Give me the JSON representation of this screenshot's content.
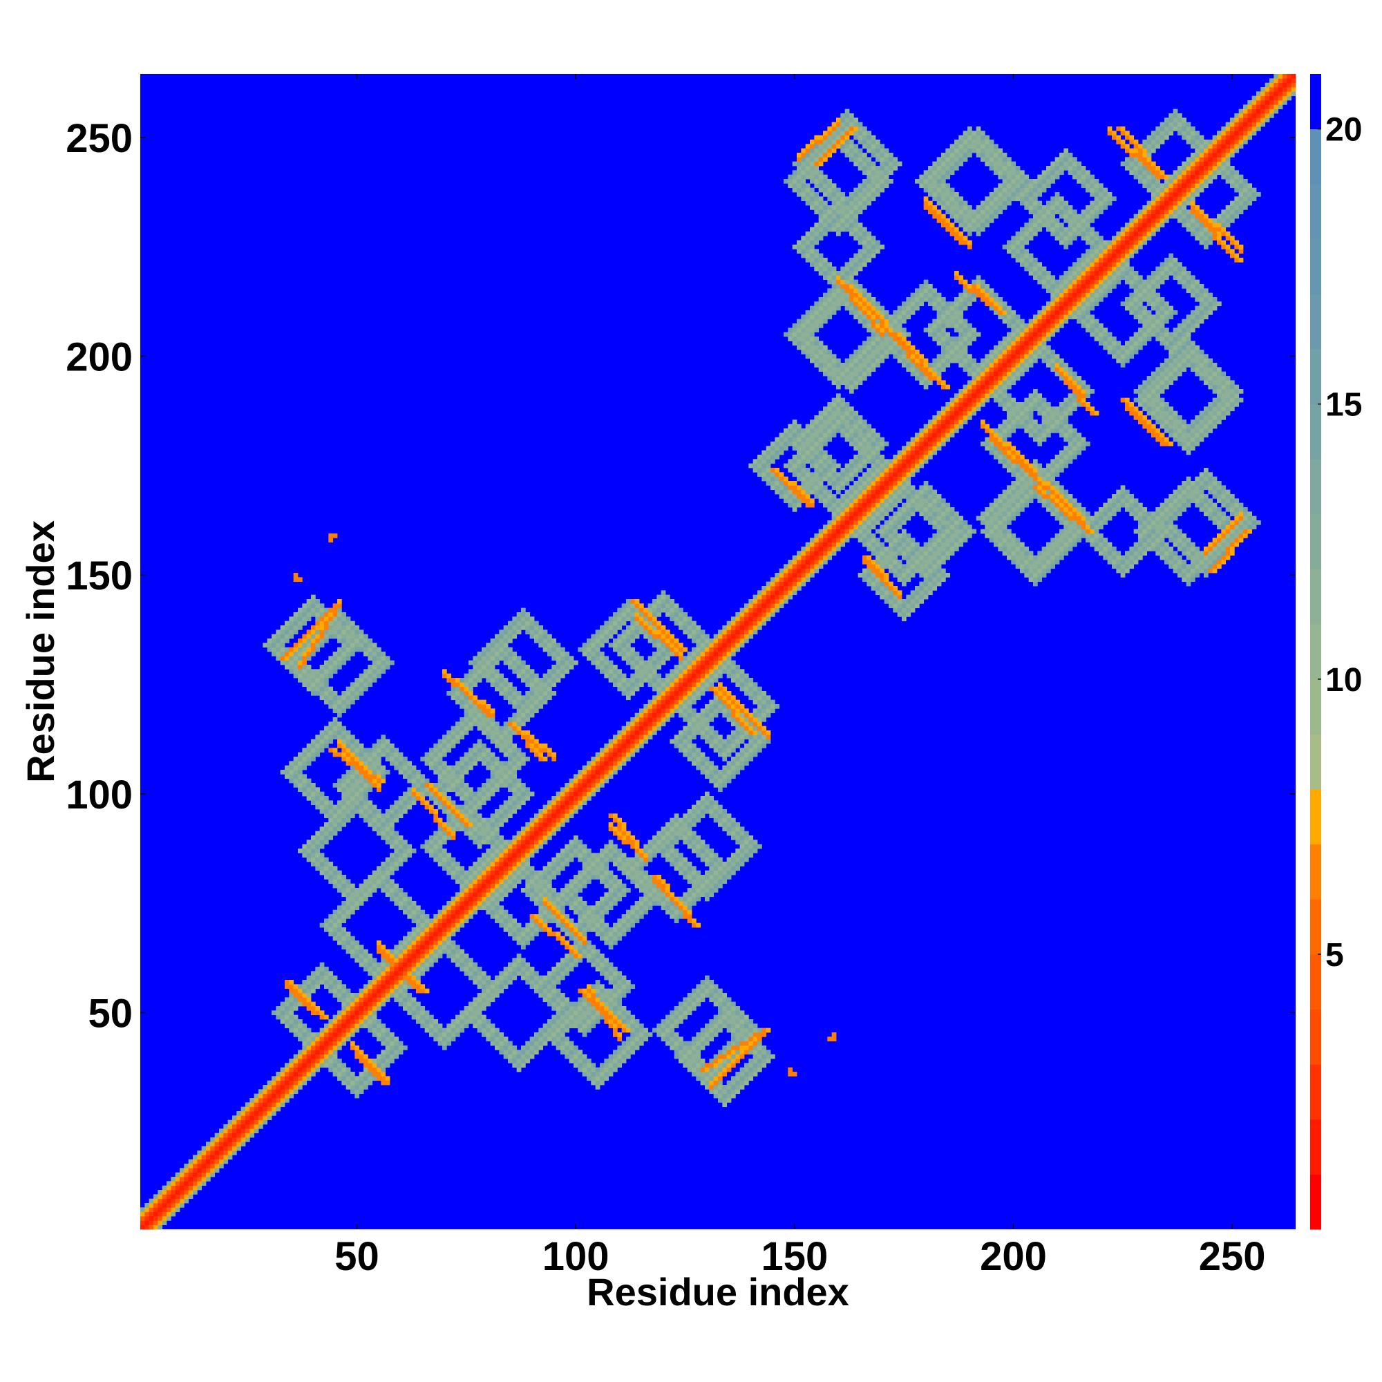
{
  "chart_data": {
    "type": "heatmap",
    "title": "",
    "xlabel": "Residue index",
    "ylabel": "Residue index",
    "xlim": [
      1,
      264
    ],
    "ylim": [
      1,
      264
    ],
    "x_ticks": [
      50,
      100,
      150,
      200,
      250
    ],
    "y_ticks": [
      50,
      100,
      150,
      200,
      250
    ],
    "x_tick_labels": [
      "50",
      "100",
      "150",
      "200",
      "250"
    ],
    "y_tick_labels": [
      "50",
      "100",
      "150",
      "200",
      "250"
    ],
    "background_value": 21,
    "colorbar": {
      "range": [
        0,
        21
      ],
      "ticks": [
        5,
        10,
        15,
        20
      ],
      "tick_labels": [
        "5",
        "10",
        "15",
        "20"
      ],
      "levels": [
        {
          "from": 0,
          "to": 1,
          "color": "#ff0000"
        },
        {
          "from": 1,
          "to": 2,
          "color": "#ff1a00"
        },
        {
          "from": 2,
          "to": 3,
          "color": "#ff3300"
        },
        {
          "from": 3,
          "to": 4,
          "color": "#ff4d00"
        },
        {
          "from": 4,
          "to": 5,
          "color": "#ff5a00"
        },
        {
          "from": 5,
          "to": 6,
          "color": "#ff6a00"
        },
        {
          "from": 6,
          "to": 7,
          "color": "#ff8000"
        },
        {
          "from": 7,
          "to": 8,
          "color": "#ffaa00"
        },
        {
          "from": 8,
          "to": 9,
          "color": "#a8bc8a"
        },
        {
          "from": 9,
          "to": 10,
          "color": "#9eb88e"
        },
        {
          "from": 10,
          "to": 11,
          "color": "#96b592"
        },
        {
          "from": 11,
          "to": 12,
          "color": "#8db096"
        },
        {
          "from": 12,
          "to": 13,
          "color": "#85ab9b"
        },
        {
          "from": 13,
          "to": 14,
          "color": "#7ea8a0"
        },
        {
          "from": 14,
          "to": 15,
          "color": "#78a3a4"
        },
        {
          "from": 15,
          "to": 16,
          "color": "#72a0a8"
        },
        {
          "from": 16,
          "to": 17,
          "color": "#6b9aac"
        },
        {
          "from": 17,
          "to": 18,
          "color": "#6797b0"
        },
        {
          "from": 18,
          "to": 19,
          "color": "#6394b3"
        },
        {
          "from": 19,
          "to": 20,
          "color": "#5f91b6"
        },
        {
          "from": 20,
          "to": 21,
          "color": "#0000ff"
        }
      ]
    },
    "diagonal": {
      "from": 1,
      "to": 264,
      "value": 1
    },
    "sheet_strands": [
      {
        "x0": 33,
        "y0": 131,
        "x1": 45,
        "y1": 143,
        "value": 6
      },
      {
        "x0": 44,
        "y0": 110,
        "x1": 55,
        "y1": 103,
        "value": 6
      },
      {
        "x0": 34,
        "y0": 57,
        "x1": 42,
        "y1": 49,
        "value": 6
      },
      {
        "x0": 50,
        "y0": 40,
        "x1": 56,
        "y1": 34,
        "value": 6
      },
      {
        "x0": 55,
        "y0": 64,
        "x1": 65,
        "y1": 55,
        "value": 6
      },
      {
        "x0": 66,
        "y0": 102,
        "x1": 75,
        "y1": 93,
        "value": 6
      },
      {
        "x0": 72,
        "y0": 126,
        "x1": 80,
        "y1": 118,
        "value": 6
      },
      {
        "x0": 85,
        "y0": 116,
        "x1": 92,
        "y1": 108,
        "value": 6
      },
      {
        "x0": 90,
        "y0": 72,
        "x1": 100,
        "y1": 63,
        "value": 6
      },
      {
        "x0": 101,
        "y0": 55,
        "x1": 111,
        "y1": 46,
        "value": 6
      },
      {
        "x0": 108,
        "y0": 95,
        "x1": 115,
        "y1": 86,
        "value": 6
      },
      {
        "x0": 113,
        "y0": 144,
        "x1": 124,
        "y1": 133,
        "value": 6
      },
      {
        "x0": 118,
        "y0": 81,
        "x1": 127,
        "y1": 70,
        "value": 6
      },
      {
        "x0": 131,
        "y0": 124,
        "x1": 140,
        "y1": 114,
        "value": 6
      },
      {
        "x0": 129,
        "y0": 37,
        "x1": 143,
        "y1": 46,
        "value": 6
      },
      {
        "x0": 145,
        "y0": 174,
        "x1": 153,
        "y1": 166,
        "value": 6
      },
      {
        "x0": 155,
        "y0": 244,
        "x1": 163,
        "y1": 252,
        "value": 6
      },
      {
        "x0": 166,
        "y0": 154,
        "x1": 173,
        "y1": 146,
        "value": 6
      },
      {
        "x0": 162,
        "y0": 216,
        "x1": 170,
        "y1": 208,
        "value": 6
      },
      {
        "x0": 173,
        "y0": 205,
        "x1": 184,
        "y1": 193,
        "value": 6
      },
      {
        "x0": 180,
        "y0": 234,
        "x1": 188,
        "y1": 226,
        "value": 6
      },
      {
        "x0": 191,
        "y0": 216,
        "x1": 197,
        "y1": 210,
        "value": 6
      },
      {
        "x0": 195,
        "y0": 181,
        "x1": 207,
        "y1": 170,
        "value": 6
      },
      {
        "x0": 205,
        "y0": 170,
        "x1": 217,
        "y1": 160,
        "value": 6
      },
      {
        "x0": 212,
        "y0": 194,
        "x1": 218,
        "y1": 187,
        "value": 6
      },
      {
        "x0": 224,
        "y0": 252,
        "x1": 234,
        "y1": 241,
        "value": 6
      },
      {
        "x0": 225,
        "y0": 190,
        "x1": 235,
        "y1": 180,
        "value": 6
      },
      {
        "x0": 241,
        "y0": 233,
        "x1": 251,
        "y1": 222,
        "value": 6
      },
      {
        "x0": 245,
        "y0": 151,
        "x1": 253,
        "y1": 160,
        "value": 6
      }
    ],
    "contact_rings": [
      {
        "cx": 40,
        "cy": 134,
        "r": 9,
        "value": 12
      },
      {
        "cx": 45,
        "cy": 105,
        "r": 10,
        "value": 12
      },
      {
        "cx": 77,
        "cy": 108,
        "r": 10,
        "value": 12
      },
      {
        "cx": 55,
        "cy": 70,
        "r": 11,
        "value": 12
      },
      {
        "cx": 50,
        "cy": 42,
        "r": 9,
        "value": 12
      },
      {
        "cx": 88,
        "cy": 130,
        "r": 10,
        "value": 12
      },
      {
        "cx": 120,
        "cy": 134,
        "r": 10,
        "value": 12
      },
      {
        "cx": 100,
        "cy": 78,
        "r": 10,
        "value": 12
      },
      {
        "cx": 87,
        "cy": 50,
        "r": 11,
        "value": 12
      },
      {
        "cx": 102,
        "cy": 56,
        "r": 9,
        "value": 12
      },
      {
        "cx": 123,
        "cy": 83,
        "r": 10,
        "value": 12
      },
      {
        "cx": 130,
        "cy": 46,
        "r": 10,
        "value": 12
      },
      {
        "cx": 133,
        "cy": 112,
        "r": 9,
        "value": 12
      },
      {
        "cx": 75,
        "cy": 88,
        "r": 8,
        "value": 12
      },
      {
        "cx": 162,
        "cy": 244,
        "r": 10,
        "value": 12
      },
      {
        "cx": 190,
        "cy": 240,
        "r": 10,
        "value": 12
      },
      {
        "cx": 212,
        "cy": 236,
        "r": 9,
        "value": 12
      },
      {
        "cx": 237,
        "cy": 244,
        "r": 10,
        "value": 12
      },
      {
        "cx": 163,
        "cy": 205,
        "r": 11,
        "value": 12
      },
      {
        "cx": 192,
        "cy": 206,
        "r": 10,
        "value": 12
      },
      {
        "cx": 225,
        "cy": 210,
        "r": 10,
        "value": 12
      },
      {
        "cx": 240,
        "cy": 192,
        "r": 10,
        "value": 12
      },
      {
        "cx": 160,
        "cy": 175,
        "r": 10,
        "value": 12
      },
      {
        "cx": 180,
        "cy": 160,
        "r": 9,
        "value": 12
      },
      {
        "cx": 205,
        "cy": 180,
        "r": 10,
        "value": 12
      },
      {
        "cx": 205,
        "cy": 160,
        "r": 10,
        "value": 12
      },
      {
        "cx": 240,
        "cy": 160,
        "r": 10,
        "value": 12
      },
      {
        "cx": 175,
        "cy": 150,
        "r": 8,
        "value": 12
      },
      {
        "cx": 225,
        "cy": 160,
        "r": 8,
        "value": 12
      }
    ],
    "isolated_contacts": [
      {
        "x": 44,
        "y": 159,
        "value": 6
      },
      {
        "x": 36,
        "y": 149,
        "value": 6
      },
      {
        "x": 158,
        "y": 44,
        "value": 6
      },
      {
        "x": 149,
        "y": 36,
        "value": 6
      }
    ]
  }
}
